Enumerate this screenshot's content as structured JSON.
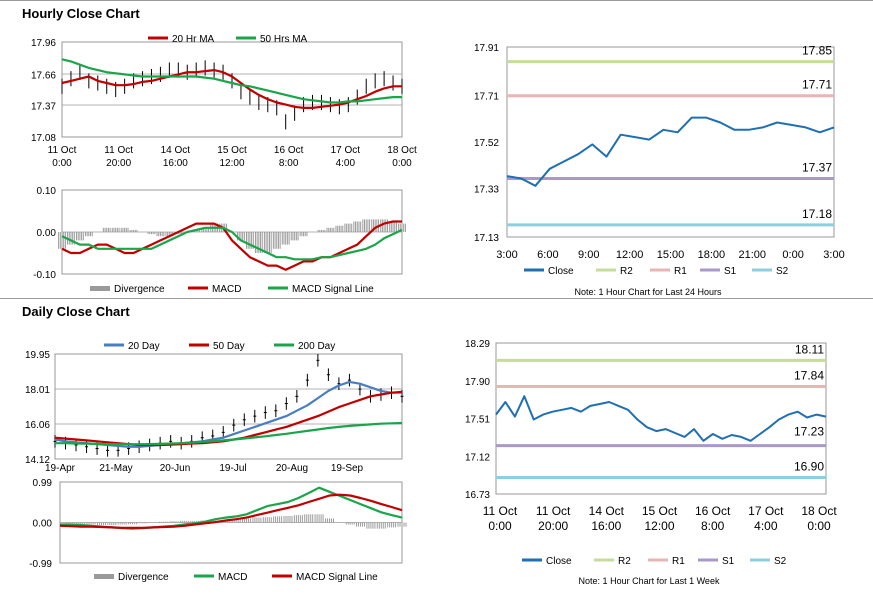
{
  "sections": {
    "hourly_title": "Hourly Close Chart",
    "daily_title": "Daily Close Chart"
  },
  "colors": {
    "red": "#c00000",
    "green": "#1aa54a",
    "blue": "#4a7ec0",
    "close": "#1f6fb2",
    "r2": "#c5dc9c",
    "r1": "#e6b6b4",
    "s1": "#a999c9",
    "s2": "#8ecfdf",
    "divergence": "#9a9a9a",
    "ohlc": "#000000"
  },
  "chart_data": [
    {
      "id": "hourly-price",
      "type": "line",
      "title": "",
      "x_tick_labels": [
        [
          "11 Oct",
          "0:00"
        ],
        [
          "11 Oct",
          "20:00"
        ],
        [
          "14 Oct",
          "16:00"
        ],
        [
          "15 Oct",
          "12:00"
        ],
        [
          "16 Oct",
          "8:00"
        ],
        [
          "17 Oct",
          "4:00"
        ],
        [
          "18 Oct",
          "0:00"
        ]
      ],
      "y_tick_labels": [
        "17.96",
        "17.66",
        "17.37",
        "17.08"
      ],
      "ylim": [
        17.08,
        17.96
      ],
      "legend": [
        "20 Hr MA",
        "50 Hrs MA"
      ],
      "series": [
        {
          "name": "Price",
          "values": [
            17.55,
            17.62,
            17.68,
            17.6,
            17.58,
            17.55,
            17.52,
            17.55,
            17.6,
            17.62,
            17.64,
            17.66,
            17.7,
            17.7,
            17.68,
            17.7,
            17.72,
            17.7,
            17.68,
            17.6,
            17.5,
            17.45,
            17.4,
            17.38,
            17.35,
            17.22,
            17.3,
            17.38,
            17.4,
            17.4,
            17.38,
            17.36,
            17.38,
            17.45,
            17.55,
            17.6,
            17.62,
            17.58,
            17.55
          ]
        },
        {
          "name": "20 Hr MA",
          "values": [
            17.58,
            17.6,
            17.62,
            17.64,
            17.6,
            17.58,
            17.56,
            17.56,
            17.57,
            17.59,
            17.6,
            17.62,
            17.64,
            17.66,
            17.68,
            17.68,
            17.69,
            17.7,
            17.68,
            17.64,
            17.58,
            17.52,
            17.47,
            17.43,
            17.4,
            17.38,
            17.36,
            17.35,
            17.35,
            17.36,
            17.37,
            17.38,
            17.4,
            17.43,
            17.46,
            17.5,
            17.53,
            17.55,
            17.55
          ]
        },
        {
          "name": "50 Hrs MA",
          "values": [
            17.8,
            17.78,
            17.75,
            17.72,
            17.7,
            17.68,
            17.67,
            17.66,
            17.65,
            17.64,
            17.64,
            17.64,
            17.64,
            17.64,
            17.64,
            17.64,
            17.63,
            17.62,
            17.6,
            17.58,
            17.56,
            17.55,
            17.53,
            17.51,
            17.49,
            17.47,
            17.45,
            17.43,
            17.42,
            17.41,
            17.4,
            17.4,
            17.41,
            17.41,
            17.42,
            17.43,
            17.44,
            17.45,
            17.45
          ]
        }
      ]
    },
    {
      "id": "hourly-macd",
      "type": "line",
      "y_tick_labels": [
        "0.10",
        "0.00",
        "-0.10"
      ],
      "ylim": [
        -0.1,
        0.1
      ],
      "legend": [
        "Divergence",
        "MACD",
        "MACD Signal Line"
      ],
      "series": [
        {
          "name": "Divergence",
          "values": [
            -0.04,
            -0.03,
            -0.02,
            -0.01,
            0.0,
            0.01,
            0.01,
            0.01,
            0.005,
            0.0,
            -0.005,
            -0.01,
            -0.01,
            -0.005,
            0.0,
            0.005,
            0.01,
            0.02,
            0.02,
            0.0,
            -0.02,
            -0.04,
            -0.05,
            -0.05,
            -0.04,
            -0.03,
            -0.02,
            -0.01,
            0.0,
            0.005,
            0.01,
            0.015,
            0.02,
            0.025,
            0.03,
            0.03,
            0.03,
            0.025,
            0.02
          ]
        },
        {
          "name": "MACD",
          "values": [
            -0.04,
            -0.05,
            -0.05,
            -0.04,
            -0.03,
            -0.03,
            -0.04,
            -0.05,
            -0.05,
            -0.04,
            -0.03,
            -0.02,
            -0.01,
            0.0,
            0.01,
            0.02,
            0.02,
            0.02,
            0.01,
            -0.02,
            -0.04,
            -0.06,
            -0.07,
            -0.08,
            -0.08,
            -0.09,
            -0.08,
            -0.07,
            -0.07,
            -0.06,
            -0.06,
            -0.05,
            -0.04,
            -0.03,
            -0.01,
            0.01,
            0.02,
            0.025,
            0.025
          ]
        },
        {
          "name": "MACD Signal Line",
          "values": [
            -0.01,
            -0.02,
            -0.03,
            -0.03,
            -0.04,
            -0.04,
            -0.04,
            -0.04,
            -0.04,
            -0.04,
            -0.04,
            -0.03,
            -0.02,
            -0.01,
            0.0,
            0.005,
            0.01,
            0.01,
            0.01,
            0.0,
            -0.02,
            -0.03,
            -0.04,
            -0.05,
            -0.06,
            -0.06,
            -0.065,
            -0.065,
            -0.065,
            -0.06,
            -0.06,
            -0.055,
            -0.05,
            -0.045,
            -0.04,
            -0.03,
            -0.015,
            -0.005,
            0.005
          ]
        }
      ]
    },
    {
      "id": "hourly-levels",
      "type": "line",
      "x_tick_labels": [
        "3:00",
        "6:00",
        "9:00",
        "12:00",
        "15:00",
        "18:00",
        "21:00",
        "0:00",
        "3:00"
      ],
      "y_tick_labels": [
        "17.91",
        "17.71",
        "17.52",
        "17.33",
        "17.13"
      ],
      "ylim": [
        17.13,
        17.91
      ],
      "levels": [
        {
          "name": "R2",
          "value": 17.85,
          "label": "17.85"
        },
        {
          "name": "R1",
          "value": 17.71,
          "label": "17.71"
        },
        {
          "name": "S1",
          "value": 17.37,
          "label": "17.37"
        },
        {
          "name": "S2",
          "value": 17.18,
          "label": "17.18"
        }
      ],
      "series": [
        {
          "name": "Close",
          "values": [
            17.38,
            17.37,
            17.34,
            17.41,
            17.44,
            17.47,
            17.51,
            17.46,
            17.55,
            17.54,
            17.53,
            17.57,
            17.56,
            17.62,
            17.62,
            17.6,
            17.57,
            17.57,
            17.58,
            17.6,
            17.59,
            17.58,
            17.56,
            17.58
          ]
        }
      ],
      "legend": [
        "Close",
        "R2",
        "R1",
        "S1",
        "S2"
      ],
      "note": "Note: 1 Hour Chart for Last 24 Hours"
    },
    {
      "id": "daily-price",
      "type": "line",
      "x_tick_labels": [
        "19-Apr",
        "21-May",
        "20-Jun",
        "19-Jul",
        "20-Aug",
        "19-Sep"
      ],
      "y_tick_labels": [
        "19.95",
        "18.01",
        "16.06",
        "14.12"
      ],
      "ylim": [
        14.12,
        19.95
      ],
      "legend": [
        "20 Day",
        "50 Day",
        "200 Day"
      ],
      "series": [
        {
          "name": "Price",
          "values": [
            15.1,
            15.0,
            14.9,
            14.8,
            14.7,
            14.6,
            14.6,
            14.7,
            14.8,
            14.9,
            15.0,
            15.1,
            15.0,
            15.1,
            15.3,
            15.4,
            15.6,
            16.0,
            16.3,
            16.5,
            16.7,
            16.8,
            17.2,
            17.6,
            18.5,
            19.6,
            18.8,
            18.3,
            18.5,
            18.0,
            17.6,
            17.7,
            17.8,
            17.6
          ]
        },
        {
          "name": "20 Day",
          "values": [
            15.2,
            15.1,
            15.05,
            15.0,
            14.95,
            14.9,
            14.85,
            14.8,
            14.8,
            14.85,
            14.9,
            14.95,
            15.0,
            15.05,
            15.1,
            15.2,
            15.3,
            15.5,
            15.7,
            15.9,
            16.1,
            16.3,
            16.5,
            16.8,
            17.1,
            17.5,
            17.9,
            18.2,
            18.4,
            18.3,
            18.1,
            17.9,
            17.8,
            17.8
          ]
        },
        {
          "name": "50 Day",
          "values": [
            15.3,
            15.25,
            15.2,
            15.15,
            15.1,
            15.05,
            15.0,
            14.95,
            14.9,
            14.9,
            14.9,
            14.92,
            14.95,
            14.98,
            15.0,
            15.05,
            15.1,
            15.2,
            15.3,
            15.45,
            15.6,
            15.75,
            15.9,
            16.1,
            16.3,
            16.5,
            16.75,
            17.0,
            17.2,
            17.4,
            17.6,
            17.7,
            17.8,
            17.85
          ]
        },
        {
          "name": "200 Day",
          "values": [
            15.0,
            15.0,
            14.98,
            14.97,
            14.96,
            14.95,
            14.94,
            14.94,
            14.94,
            14.95,
            14.96,
            14.98,
            15.0,
            15.03,
            15.07,
            15.1,
            15.15,
            15.2,
            15.26,
            15.32,
            15.38,
            15.45,
            15.52,
            15.6,
            15.68,
            15.76,
            15.84,
            15.9,
            15.96,
            16.0,
            16.04,
            16.08,
            16.1,
            16.12
          ]
        }
      ]
    },
    {
      "id": "daily-macd",
      "type": "line",
      "y_tick_labels": [
        "0.99",
        "0.00",
        "-0.99"
      ],
      "ylim": [
        -0.99,
        0.99
      ],
      "legend": [
        "Divergence",
        "MACD",
        "MACD Signal Line"
      ],
      "series": [
        {
          "name": "Divergence",
          "values": [
            0.0,
            -0.02,
            -0.05,
            -0.05,
            -0.06,
            -0.06,
            -0.05,
            -0.04,
            -0.02,
            0.0,
            0.02,
            0.03,
            0.04,
            0.04,
            0.05,
            0.05,
            0.06,
            0.08,
            0.1,
            0.12,
            0.13,
            0.15,
            0.16,
            0.18,
            0.2,
            0.2,
            0.1,
            0.0,
            -0.05,
            -0.1,
            -0.15,
            -0.15,
            -0.12,
            -0.1
          ]
        },
        {
          "name": "MACD",
          "values": [
            -0.05,
            -0.05,
            -0.06,
            -0.08,
            -0.1,
            -0.12,
            -0.14,
            -0.15,
            -0.14,
            -0.12,
            -0.1,
            -0.08,
            -0.05,
            -0.02,
            0.02,
            0.08,
            0.12,
            0.15,
            0.2,
            0.3,
            0.4,
            0.45,
            0.5,
            0.6,
            0.72,
            0.85,
            0.75,
            0.65,
            0.55,
            0.45,
            0.35,
            0.25,
            0.18,
            0.12
          ]
        },
        {
          "name": "MACD Signal Line",
          "values": [
            -0.08,
            -0.09,
            -0.1,
            -0.1,
            -0.11,
            -0.12,
            -0.13,
            -0.13,
            -0.13,
            -0.12,
            -0.11,
            -0.1,
            -0.08,
            -0.05,
            -0.02,
            0.01,
            0.05,
            0.08,
            0.12,
            0.18,
            0.24,
            0.3,
            0.36,
            0.42,
            0.5,
            0.58,
            0.66,
            0.68,
            0.66,
            0.6,
            0.53,
            0.45,
            0.38,
            0.3
          ]
        }
      ]
    },
    {
      "id": "daily-levels",
      "type": "line",
      "x_tick_labels": [
        [
          "11 Oct",
          "0:00"
        ],
        [
          "11 Oct",
          "20:00"
        ],
        [
          "14 Oct",
          "16:00"
        ],
        [
          "15 Oct",
          "12:00"
        ],
        [
          "16 Oct",
          "8:00"
        ],
        [
          "17 Oct",
          "4:00"
        ],
        [
          "18 Oct",
          "0:00"
        ]
      ],
      "y_tick_labels": [
        "18.29",
        "17.90",
        "17.51",
        "17.12",
        "16.73"
      ],
      "ylim": [
        16.73,
        18.29
      ],
      "levels": [
        {
          "name": "R2",
          "value": 18.11,
          "label": "18.11"
        },
        {
          "name": "R1",
          "value": 17.84,
          "label": "17.84"
        },
        {
          "name": "S1",
          "value": 17.23,
          "label": "17.23"
        },
        {
          "name": "S2",
          "value": 16.9,
          "label": "16.90"
        }
      ],
      "series": [
        {
          "name": "Close",
          "values": [
            17.55,
            17.68,
            17.53,
            17.74,
            17.5,
            17.55,
            17.58,
            17.6,
            17.62,
            17.58,
            17.64,
            17.66,
            17.68,
            17.64,
            17.6,
            17.5,
            17.42,
            17.38,
            17.4,
            17.36,
            17.32,
            17.4,
            17.28,
            17.35,
            17.3,
            17.34,
            17.32,
            17.28,
            17.35,
            17.42,
            17.5,
            17.55,
            17.58,
            17.52,
            17.55,
            17.53
          ]
        }
      ],
      "legend": [
        "Close",
        "R2",
        "R1",
        "S1",
        "S2"
      ],
      "note": "Note: 1 Hour Chart for Last 1 Week"
    }
  ]
}
